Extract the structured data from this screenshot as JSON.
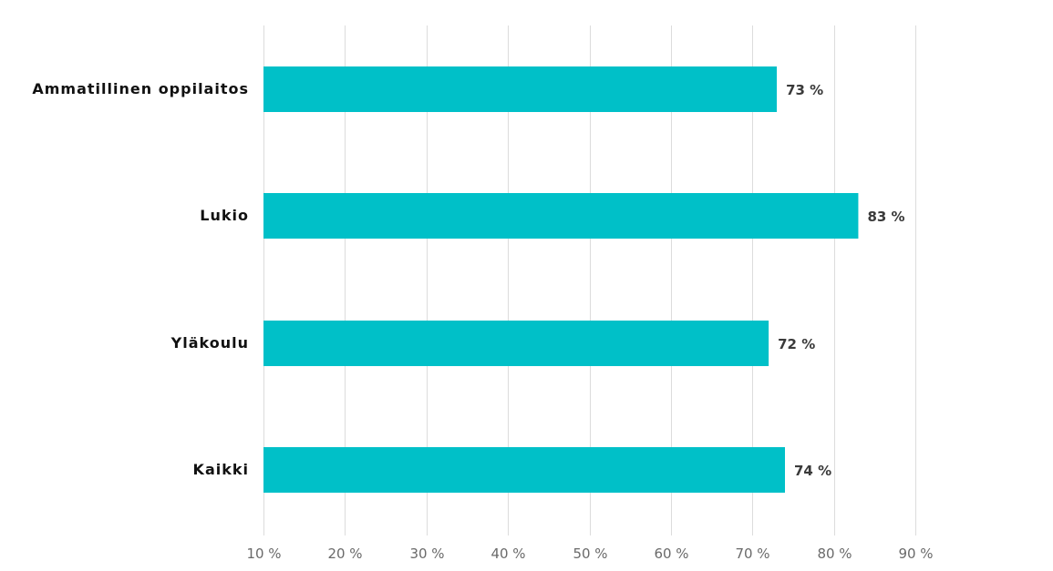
{
  "chart_data": {
    "type": "bar",
    "orientation": "horizontal",
    "categories": [
      "Ammatillinen oppilaitos",
      "Lukio",
      "Yläkoulu",
      "Kaikki"
    ],
    "values": [
      73,
      83,
      72,
      74
    ],
    "value_labels": [
      "73 %",
      "83 %",
      "72 %",
      "74 %"
    ],
    "xlim": [
      10,
      90
    ],
    "ticks": [
      10,
      20,
      30,
      40,
      50,
      60,
      70,
      80,
      90
    ],
    "tick_labels": [
      "10 %",
      "20 %",
      "30 %",
      "40 %",
      "50 %",
      "60 %",
      "70 %",
      "80 %",
      "90 %"
    ],
    "title": "",
    "xlabel": "",
    "ylabel": "",
    "grid": true,
    "legend": "none",
    "bar_color": "#00c0c8"
  }
}
